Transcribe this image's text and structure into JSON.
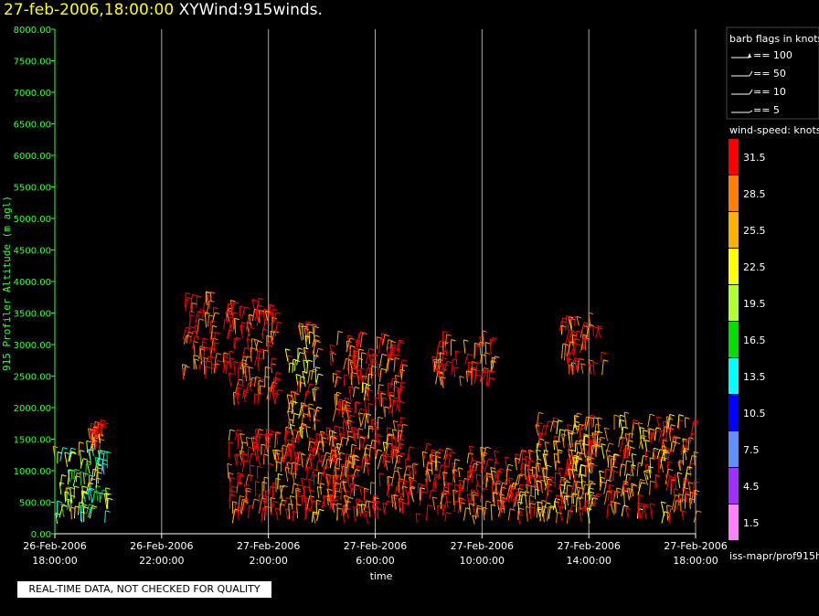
{
  "header": {
    "timestamp": "27-feb-2006,18:00:00",
    "product": "XYWind:915winds."
  },
  "footer": {
    "qc_note": "REAL-TIME DATA, NOT CHECKED FOR QUALITY",
    "source_label": "iss-mapr/prof915h"
  },
  "legend": {
    "barb_title": "barb flags in knots",
    "barb_items": [
      "== 100",
      "== 50",
      "== 10",
      "== 5"
    ],
    "speed_title": "wind-speed: knots",
    "speed_bins": [
      {
        "label": "31.5",
        "color": "#ff0000"
      },
      {
        "label": "28.5",
        "color": "#ff8000"
      },
      {
        "label": "25.5",
        "color": "#ffb000"
      },
      {
        "label": "22.5",
        "color": "#ffff00"
      },
      {
        "label": "19.5",
        "color": "#b0ff30"
      },
      {
        "label": "16.5",
        "color": "#00e000"
      },
      {
        "label": "13.5",
        "color": "#00ffff"
      },
      {
        "label": "10.5",
        "color": "#0000ff"
      },
      {
        "label": "7.5",
        "color": "#6090ff"
      },
      {
        "label": "4.5",
        "color": "#a030ff"
      },
      {
        "label": "1.5",
        "color": "#ff80ff"
      }
    ]
  },
  "chart_data": {
    "type": "scatter",
    "xlabel": "time",
    "ylabel": "915 Profiler Altitude (m agl)",
    "x_ticks": [
      {
        "date": "26-Feb-2006",
        "time": "18:00:00"
      },
      {
        "date": "26-Feb-2006",
        "time": "22:00:00"
      },
      {
        "date": "27-Feb-2006",
        "time": "2:00:00"
      },
      {
        "date": "27-Feb-2006",
        "time": "6:00:00"
      },
      {
        "date": "27-Feb-2006",
        "time": "10:00:00"
      },
      {
        "date": "27-Feb-2006",
        "time": "14:00:00"
      },
      {
        "date": "27-Feb-2006",
        "time": "18:00:00"
      }
    ],
    "x_range_hours": [
      0,
      24
    ],
    "ylim": [
      0,
      8000
    ],
    "y_ticks": [
      "0.00",
      "500.00",
      "1000.00",
      "1500.00",
      "2000.00",
      "2500.00",
      "3000.00",
      "3500.00",
      "4000.00",
      "4500.00",
      "5000.00",
      "5500.00",
      "6000.00",
      "6500.00",
      "7000.00",
      "7500.00",
      "8000.00"
    ],
    "grid": "vertical lines at x ticks",
    "wind_barb_clusters": [
      {
        "t_hours": [
          0,
          2
        ],
        "alt_m": [
          150,
          1300
        ],
        "dominant_speed_kt": 19.5
      },
      {
        "t_hours": [
          1.3,
          1.8
        ],
        "alt_m": [
          1300,
          1600
        ],
        "dominant_speed_kt": 31.5
      },
      {
        "t_hours": [
          4.8,
          6
        ],
        "alt_m": [
          2400,
          3700
        ],
        "dominant_speed_kt": 31.5
      },
      {
        "t_hours": [
          6.3,
          8.3
        ],
        "alt_m": [
          2000,
          3500
        ],
        "dominant_speed_kt": 31.5
      },
      {
        "t_hours": [
          6.5,
          10.5
        ],
        "alt_m": [
          150,
          1500
        ],
        "dominant_speed_kt": 31.5
      },
      {
        "t_hours": [
          8.7,
          9.8
        ],
        "alt_m": [
          1500,
          3200
        ],
        "dominant_speed_kt": 25.5
      },
      {
        "t_hours": [
          10.3,
          13
        ],
        "alt_m": [
          150,
          3000
        ],
        "dominant_speed_kt": 31.5
      },
      {
        "t_hours": [
          13,
          18
        ],
        "alt_m": [
          150,
          1200
        ],
        "dominant_speed_kt": 31.5
      },
      {
        "t_hours": [
          14.2,
          16.5
        ],
        "alt_m": [
          2300,
          3000
        ],
        "dominant_speed_kt": 31.5
      },
      {
        "t_hours": [
          18.8,
          20.5
        ],
        "alt_m": [
          2500,
          3300
        ],
        "dominant_speed_kt": 31.5
      },
      {
        "t_hours": [
          18,
          24
        ],
        "alt_m": [
          150,
          1700
        ],
        "dominant_speed_kt": 28.5
      }
    ]
  }
}
